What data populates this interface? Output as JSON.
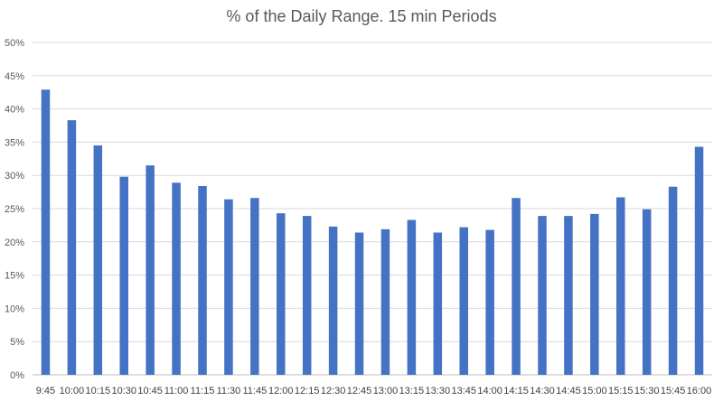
{
  "chart_data": {
    "type": "bar",
    "title": "% of the Daily Range. 15 min Periods",
    "xlabel": "",
    "ylabel": "",
    "categories": [
      "9:45",
      "10:00",
      "10:15",
      "10:30",
      "10:45",
      "11:00",
      "11:15",
      "11:30",
      "11:45",
      "12:00",
      "12:15",
      "12:30",
      "12:45",
      "13:00",
      "13:15",
      "13:30",
      "13:45",
      "14:00",
      "14:15",
      "14:30",
      "14:45",
      "15:00",
      "15:15",
      "15:30",
      "15:45",
      "16:00"
    ],
    "series": [
      {
        "values": [
          42.9,
          38.3,
          34.5,
          29.8,
          31.5,
          28.9,
          28.4,
          26.4,
          26.6,
          24.3,
          23.9,
          22.3,
          21.4,
          21.9,
          23.3,
          21.4,
          22.2,
          21.8,
          26.6,
          23.9,
          23.9,
          24.2,
          26.7,
          24.9,
          28.3,
          34.3
        ],
        "color": "#4472C4"
      }
    ],
    "ylim": [
      0,
      50
    ],
    "yticks": [
      "0%",
      "5%",
      "10%",
      "15%",
      "20%",
      "25%",
      "30%",
      "35%",
      "40%",
      "45%",
      "50%"
    ],
    "grid": true,
    "legend": "none"
  }
}
